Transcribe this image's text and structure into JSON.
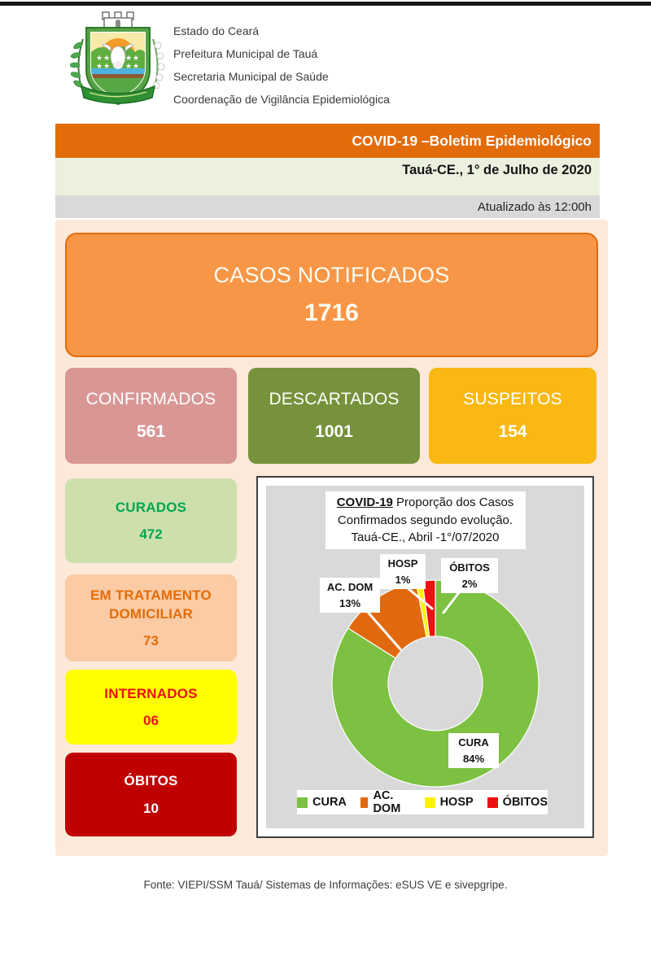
{
  "header": {
    "logo": "taua-municipal-coat-of-arms",
    "lines": [
      "Estado do Ceará",
      "Prefeitura Municipal de Tauá",
      "Secretaria Municipal de Saúde",
      "Coordenação de Vigilância Epidemiológica"
    ]
  },
  "banners": {
    "title": "COVID-19 –Boletim Epidemiológico",
    "title_bg": "#E26B0A",
    "date": "Tauá-CE., 1° de Julho de 2020",
    "date_bg": "#EBF1DE",
    "updated": "Atualizado às 12:00h",
    "updated_bg": "#D9D9D9"
  },
  "summary": {
    "notificados": {
      "label": "CASOS NOTIFICADOS",
      "value": "1716",
      "bg": "#F79646",
      "fg": "#FDFCF2",
      "border": "#E26B0A"
    },
    "confirmados": {
      "label": "CONFIRMADOS",
      "value": "561",
      "bg": "#D89795",
      "fg": "#FFFFFF"
    },
    "descartados": {
      "label": "DESCARTADOS",
      "value": "1001",
      "bg": "#76923C",
      "fg": "#FFFFFF"
    },
    "suspeitos": {
      "label": "SUSPEITOS",
      "value": "154",
      "bg": "#F9B912",
      "fg": "#FFFFFF"
    },
    "curados": {
      "label": "CURADOS",
      "value": "472",
      "bg": "#CDE0AC",
      "fg": "#00A551"
    },
    "em_tratamento": {
      "label": "EM TRATAMENTO DOMICILIAR",
      "value": "73",
      "bg": "#FACBA4",
      "fg": "#E36C0A"
    },
    "internados": {
      "label": "INTERNADOS",
      "value": "06",
      "bg": "#FFFF00",
      "fg": "#EA1111"
    },
    "obitos": {
      "label": "ÓBITOS",
      "value": "10",
      "bg": "#C00000",
      "fg": "#FFFFFF"
    }
  },
  "chart_data": {
    "type": "pie",
    "subtype": "donut",
    "title": "COVID-19 Proporção dos Casos Confirmados segundo evolução. Tauá-CE., Abril -1°/07/2020",
    "title_bold": "COVID-19",
    "title_rest": " Proporção dos Casos Confirmados segundo evolução. Tauá-CE., Abril -1°/07/2020",
    "categories": [
      "CURA",
      "AC. DOM",
      "HOSP",
      "ÓBITOS"
    ],
    "values": [
      84,
      13,
      1,
      2
    ],
    "unit": "%",
    "slices": [
      {
        "name": "CURA",
        "pct": 84,
        "color": "#7CC142"
      },
      {
        "name": "AC. DOM",
        "pct": 13,
        "color": "#E0690F"
      },
      {
        "name": "HOSP",
        "pct": 1,
        "color": "#FFF200"
      },
      {
        "name": "ÓBITOS",
        "pct": 2,
        "color": "#EE1111"
      }
    ],
    "callouts": [
      {
        "name": "AC. DOM",
        "pct_label": "13%"
      },
      {
        "name": "HOSP",
        "pct_label": "1%"
      },
      {
        "name": "ÓBITOS",
        "pct_label": "2%"
      },
      {
        "name": "CURA",
        "pct_label": "84%"
      }
    ],
    "start_angle_deg": 0,
    "direction": "clockwise",
    "legend_position": "bottom",
    "plot_background": "#D9D9D9"
  },
  "footer": {
    "source": "Fonte: VIEPI/SSM Tauá/ Sistemas de Informações: eSUS VE e sivepgripe."
  }
}
